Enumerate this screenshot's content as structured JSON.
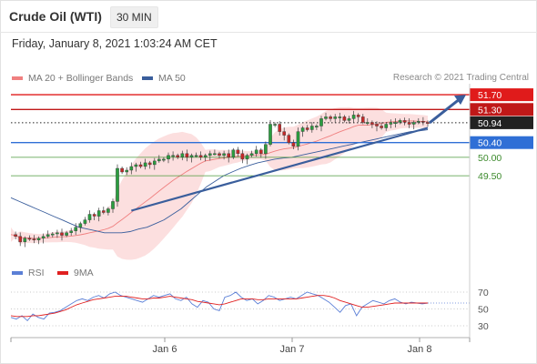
{
  "header": {
    "instrument": "Crude Oil (WTI)",
    "timeframe": "30 MIN"
  },
  "datetime": "Friday, January 8, 2021 1:03:24 AM CET",
  "legend": {
    "ma20": {
      "label": "MA 20 + Bollinger Bands",
      "color": "#f08080"
    },
    "ma50": {
      "label": "MA 50",
      "color": "#3a5e9c"
    }
  },
  "credit": "Research © 2021 Trading Central",
  "rsi_legend": {
    "rsi": {
      "label": "RSI",
      "color": "#5b7fd6"
    },
    "ma9": {
      "label": "9MA",
      "color": "#e02020"
    }
  },
  "chart_data": [
    {
      "type": "line",
      "x_tick_labels": [
        "Jan 6",
        "Jan 7",
        "Jan 8"
      ],
      "price_levels": [
        {
          "label": "51.70",
          "value": 51.7,
          "color": "#e01b1b",
          "style": "solid",
          "badge": true
        },
        {
          "label": "51.30",
          "value": 51.3,
          "color": "#c01818",
          "style": "solid",
          "badge": true
        },
        {
          "label": "50.94",
          "value": 50.94,
          "color": "#222222",
          "style": "dotted",
          "badge": true,
          "current": true
        },
        {
          "label": "50.40",
          "value": 50.4,
          "color": "#2f6fd6",
          "style": "solid",
          "badge": true
        },
        {
          "label": "50.00",
          "value": 50.0,
          "color": "#4a9a3a",
          "style": "solid",
          "badge": false
        },
        {
          "label": "49.50",
          "value": 49.5,
          "color": "#4a9a3a",
          "style": "solid",
          "badge": false
        }
      ],
      "series": [
        {
          "name": "Crude Oil (WTI)",
          "close": [
            47.9,
            47.85,
            47.7,
            47.8,
            47.78,
            47.75,
            47.8,
            47.85,
            47.9,
            47.92,
            47.95,
            47.88,
            47.95,
            48.0,
            48.1,
            48.2,
            48.3,
            48.45,
            48.4,
            48.55,
            48.5,
            48.6,
            48.8,
            49.7,
            49.6,
            49.65,
            49.75,
            49.8,
            49.75,
            49.85,
            49.8,
            49.9,
            49.95,
            49.95,
            50.05,
            50.05,
            50.0,
            50.1,
            50.0,
            50.05,
            50.05,
            50.0,
            50.05,
            50.1,
            50.1,
            50.05,
            50.1,
            50.0,
            50.2,
            50.1,
            49.95,
            50.05,
            50.1,
            50.2,
            50.1,
            50.35,
            50.9,
            50.9,
            50.7,
            50.6,
            50.4,
            50.3,
            50.7,
            50.8,
            50.75,
            50.85,
            50.85,
            51.05,
            51.1,
            51.05,
            51.1,
            51.1,
            51.0,
            51.05,
            51.15,
            51.1,
            50.95,
            50.95,
            50.9,
            50.85,
            50.8,
            50.9,
            50.95,
            50.95,
            51.0,
            50.95,
            50.9,
            50.95,
            50.98,
            50.95,
            50.94
          ]
        },
        {
          "name": "MA 50",
          "values": [
            48.9,
            48.8,
            48.7,
            48.6,
            48.5,
            48.4,
            48.3,
            48.2,
            48.1,
            48.05,
            48.0,
            47.95,
            47.95,
            47.95,
            47.98,
            48.05,
            48.1,
            48.2,
            48.3,
            48.45,
            48.6,
            48.8,
            49.0,
            49.2,
            49.35,
            49.5,
            49.6,
            49.7,
            49.78,
            49.85,
            49.9,
            49.95,
            49.98,
            50.0,
            50.05,
            50.1,
            50.15,
            50.2,
            50.25,
            50.3,
            50.35,
            50.4,
            50.45,
            50.5,
            50.55,
            50.6,
            50.65,
            50.7,
            50.72,
            50.75
          ]
        }
      ],
      "trendlines": [
        {
          "from": {
            "bar": 26,
            "price": 48.55
          },
          "to": {
            "bar": 93,
            "price": 50.8
          },
          "color": "#3a5e9c"
        }
      ],
      "projection_arrow": {
        "from_price": 50.94,
        "to_price": 51.7,
        "color": "#3a5e9c"
      }
    },
    {
      "type": "line",
      "title": "RSI",
      "y_tick_labels": [
        "70",
        "50",
        "30"
      ],
      "series": [
        {
          "name": "RSI",
          "values": [
            40,
            38,
            42,
            36,
            44,
            40,
            38,
            45,
            46,
            48,
            52,
            56,
            60,
            62,
            60,
            64,
            66,
            63,
            68,
            70,
            66,
            64,
            62,
            60,
            58,
            62,
            66,
            64,
            66,
            68,
            62,
            60,
            64,
            56,
            52,
            60,
            58,
            50,
            48,
            64,
            66,
            70,
            64,
            60,
            62,
            56,
            60,
            66,
            64,
            60,
            62,
            64,
            62,
            66,
            70,
            68,
            66,
            62,
            58,
            52,
            46,
            54,
            56,
            42,
            52,
            56,
            60,
            58,
            56,
            60,
            62,
            58,
            56,
            58,
            57,
            56,
            57
          ]
        },
        {
          "name": "9MA",
          "values": [
            42,
            41,
            41,
            41,
            42,
            42,
            43,
            44,
            45,
            47,
            49,
            52,
            55,
            57,
            59,
            61,
            62,
            63,
            64,
            65,
            65,
            65,
            64,
            63,
            62,
            62,
            63,
            63,
            64,
            65,
            64,
            63,
            62,
            61,
            59,
            58,
            57,
            56,
            55,
            56,
            58,
            60,
            62,
            62,
            62,
            61,
            61,
            62,
            62,
            62,
            62,
            62,
            62,
            63,
            64,
            65,
            66,
            66,
            65,
            63,
            60,
            58,
            56,
            54,
            52,
            52,
            53,
            54,
            55,
            56,
            57,
            57,
            57,
            57,
            57,
            57,
            57
          ]
        }
      ]
    }
  ]
}
